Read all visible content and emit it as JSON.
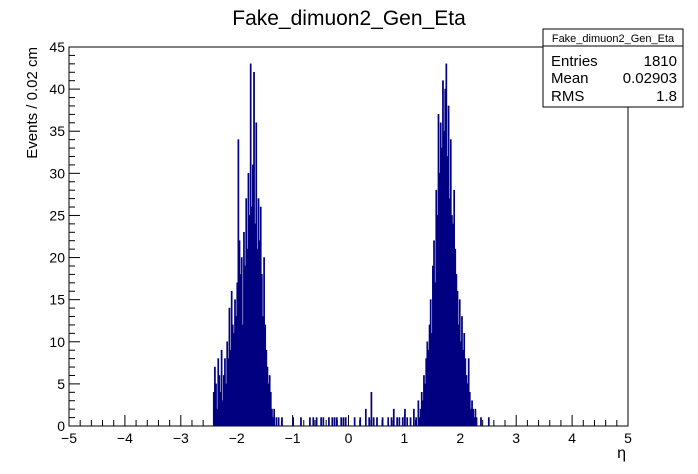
{
  "chart_data": {
    "type": "histogram",
    "title": "Fake_dimuon2_Gen_Eta",
    "xlabel": "η",
    "ylabel": "Events / 0.02 cm",
    "xlim": [
      -5,
      5
    ],
    "ylim": [
      0,
      45
    ],
    "x_ticks": [
      -5,
      -4,
      -3,
      -2,
      -1,
      0,
      1,
      2,
      3,
      4,
      5
    ],
    "y_ticks": [
      0,
      5,
      10,
      15,
      20,
      25,
      30,
      35,
      40,
      45
    ],
    "bin_width": 0.02,
    "grid": false,
    "line_color": "#000080",
    "bins": [
      [
        -2.42,
        4
      ],
      [
        -2.4,
        7
      ],
      [
        -2.38,
        5
      ],
      [
        -2.36,
        2
      ],
      [
        -2.34,
        8
      ],
      [
        -2.32,
        6
      ],
      [
        -2.3,
        4
      ],
      [
        -2.28,
        9
      ],
      [
        -2.26,
        3
      ],
      [
        -2.24,
        6
      ],
      [
        -2.22,
        8
      ],
      [
        -2.2,
        5
      ],
      [
        -2.18,
        10
      ],
      [
        -2.16,
        8
      ],
      [
        -2.14,
        14
      ],
      [
        -2.12,
        9
      ],
      [
        -2.1,
        16
      ],
      [
        -2.08,
        12
      ],
      [
        -2.06,
        11
      ],
      [
        -2.04,
        15
      ],
      [
        -2.02,
        13
      ],
      [
        -2.0,
        17
      ],
      [
        -1.98,
        34
      ],
      [
        -1.96,
        22
      ],
      [
        -1.94,
        18
      ],
      [
        -1.92,
        20
      ],
      [
        -1.9,
        12
      ],
      [
        -1.88,
        23
      ],
      [
        -1.86,
        19
      ],
      [
        -1.84,
        27
      ],
      [
        -1.82,
        21
      ],
      [
        -1.8,
        30
      ],
      [
        -1.78,
        25
      ],
      [
        -1.76,
        43
      ],
      [
        -1.74,
        26
      ],
      [
        -1.72,
        31
      ],
      [
        -1.7,
        42
      ],
      [
        -1.68,
        24
      ],
      [
        -1.66,
        36
      ],
      [
        -1.64,
        21
      ],
      [
        -1.62,
        27
      ],
      [
        -1.6,
        22
      ],
      [
        -1.58,
        26
      ],
      [
        -1.56,
        18
      ],
      [
        -1.54,
        13
      ],
      [
        -1.52,
        20
      ],
      [
        -1.5,
        12
      ],
      [
        -1.48,
        9
      ],
      [
        -1.46,
        7
      ],
      [
        -1.44,
        5
      ],
      [
        -1.42,
        6
      ],
      [
        -1.4,
        4
      ],
      [
        -1.38,
        2
      ],
      [
        -1.36,
        1
      ],
      [
        -1.34,
        2
      ],
      [
        -1.32,
        0
      ],
      [
        -1.3,
        1
      ],
      [
        -1.28,
        0
      ],
      [
        -1.26,
        1
      ],
      [
        -1.24,
        0
      ],
      [
        -1.2,
        1
      ],
      [
        -1.0,
        1
      ],
      [
        -0.86,
        1
      ],
      [
        -0.7,
        1
      ],
      [
        -0.64,
        1
      ],
      [
        -0.62,
        0
      ],
      [
        -0.58,
        1
      ],
      [
        -0.5,
        1
      ],
      [
        -0.46,
        1
      ],
      [
        -0.36,
        1
      ],
      [
        -0.3,
        1
      ],
      [
        -0.26,
        1
      ],
      [
        -0.22,
        1
      ],
      [
        -0.14,
        1
      ],
      [
        -0.1,
        1
      ],
      [
        -0.06,
        1
      ],
      [
        0.1,
        1
      ],
      [
        0.2,
        1
      ],
      [
        0.3,
        2
      ],
      [
        0.36,
        1
      ],
      [
        0.4,
        4
      ],
      [
        0.44,
        1
      ],
      [
        0.5,
        1
      ],
      [
        0.6,
        1
      ],
      [
        0.7,
        1
      ],
      [
        0.76,
        1
      ],
      [
        0.8,
        2
      ],
      [
        0.86,
        1
      ],
      [
        0.9,
        1
      ],
      [
        0.96,
        1
      ],
      [
        1.0,
        2
      ],
      [
        1.04,
        1
      ],
      [
        1.1,
        1
      ],
      [
        1.16,
        2
      ],
      [
        1.2,
        1
      ],
      [
        1.24,
        3
      ],
      [
        1.26,
        1
      ],
      [
        1.28,
        2
      ],
      [
        1.3,
        4
      ],
      [
        1.32,
        3
      ],
      [
        1.34,
        6
      ],
      [
        1.36,
        5
      ],
      [
        1.38,
        8
      ],
      [
        1.4,
        10
      ],
      [
        1.42,
        9
      ],
      [
        1.44,
        12
      ],
      [
        1.46,
        15
      ],
      [
        1.48,
        11
      ],
      [
        1.5,
        19
      ],
      [
        1.52,
        22
      ],
      [
        1.54,
        17
      ],
      [
        1.56,
        28
      ],
      [
        1.58,
        25
      ],
      [
        1.6,
        37
      ],
      [
        1.62,
        30
      ],
      [
        1.64,
        36
      ],
      [
        1.66,
        33
      ],
      [
        1.68,
        41
      ],
      [
        1.7,
        35
      ],
      [
        1.72,
        40
      ],
      [
        1.74,
        43
      ],
      [
        1.76,
        32
      ],
      [
        1.78,
        38
      ],
      [
        1.8,
        27
      ],
      [
        1.82,
        34
      ],
      [
        1.84,
        25
      ],
      [
        1.86,
        24
      ],
      [
        1.88,
        28
      ],
      [
        1.9,
        21
      ],
      [
        1.92,
        18
      ],
      [
        1.94,
        16
      ],
      [
        1.96,
        12
      ],
      [
        1.98,
        15
      ],
      [
        2.0,
        10
      ],
      [
        2.02,
        13
      ],
      [
        2.04,
        9
      ],
      [
        2.06,
        11
      ],
      [
        2.08,
        8
      ],
      [
        2.1,
        6
      ],
      [
        2.12,
        5
      ],
      [
        2.14,
        8
      ],
      [
        2.16,
        4
      ],
      [
        2.18,
        2
      ],
      [
        2.2,
        3
      ],
      [
        2.22,
        2
      ],
      [
        2.24,
        1
      ],
      [
        2.26,
        2
      ],
      [
        2.28,
        1
      ],
      [
        2.3,
        0
      ],
      [
        2.36,
        1
      ],
      [
        2.5,
        1
      ]
    ]
  },
  "stats_box": {
    "title": "Fake_dimuon2_Gen_Eta",
    "rows": [
      {
        "label": "Entries",
        "value": "1810"
      },
      {
        "label": "Mean",
        "value": "0.02903"
      },
      {
        "label": "RMS",
        "value": "1.8"
      }
    ]
  }
}
